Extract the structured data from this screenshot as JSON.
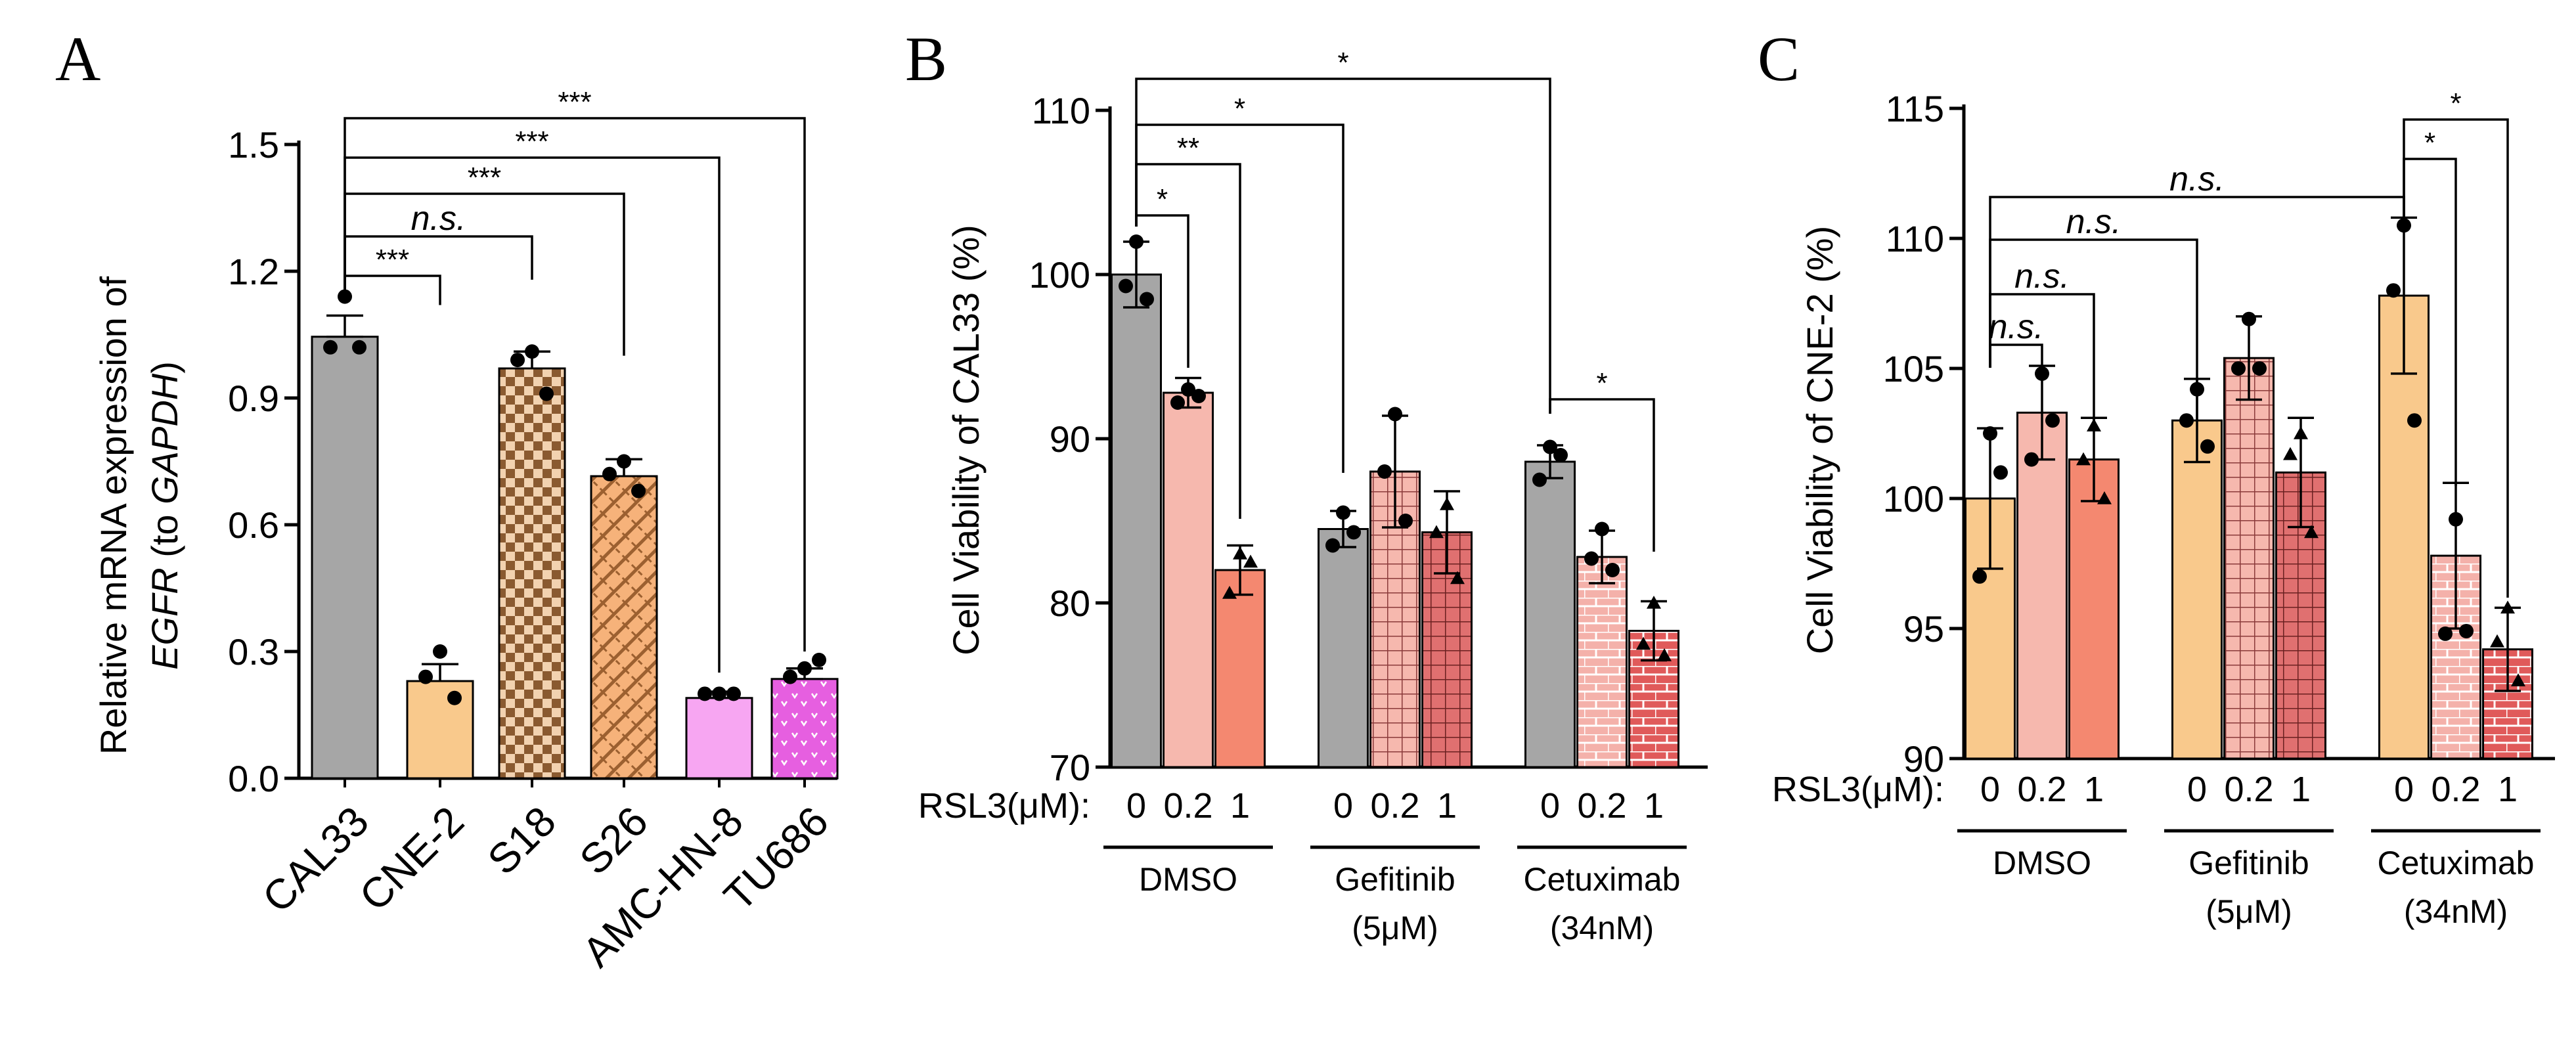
{
  "chart_data": [
    {
      "panel": "A",
      "type": "bar",
      "ylabel_line1": "Relative mRNA expression of",
      "ylabel_gene": "EGFR",
      "ylabel_to": " (to ",
      "ylabel_ref": "GAPDH",
      "ylabel_close": ")",
      "ylim": [
        0,
        1.5
      ],
      "yticks": [
        "0.0",
        "0.3",
        "0.6",
        "0.9",
        "1.2",
        "1.5"
      ],
      "categories": [
        "CAL33",
        "CNE-2",
        "S18",
        "S26",
        "AMC-HN-8",
        "TU686"
      ],
      "values": [
        1.045,
        0.23,
        0.97,
        0.715,
        0.19,
        0.235
      ],
      "errors": [
        0.05,
        0.04,
        0.04,
        0.04,
        0.015,
        0.025
      ],
      "points": [
        [
          1.14,
          1.02,
          1.02
        ],
        [
          0.3,
          0.24,
          0.19
        ],
        [
          1.01,
          0.99,
          0.91
        ],
        [
          0.75,
          0.72,
          0.68
        ],
        [
          0.2,
          0.2,
          0.2
        ],
        [
          0.26,
          0.24,
          0.28
        ]
      ],
      "comparisons": [
        {
          "from": 0,
          "to": 1,
          "label": "***"
        },
        {
          "from": 0,
          "to": 2,
          "label": "n.s."
        },
        {
          "from": 0,
          "to": 3,
          "label": "***"
        },
        {
          "from": 0,
          "to": 4,
          "label": "***"
        },
        {
          "from": 0,
          "to": 5,
          "label": "***"
        }
      ]
    },
    {
      "panel": "B",
      "type": "bar",
      "ylabel": "Cell Viability  of  CAL33  (%)",
      "ylim": [
        70,
        110
      ],
      "yticks": [
        "70",
        "80",
        "90",
        "100",
        "110"
      ],
      "x_prefix": "RSL3(μM):",
      "doses": [
        "0",
        "0.2",
        "1"
      ],
      "groups": [
        {
          "name": "DMSO",
          "sub": "",
          "values": [
            100,
            92.8,
            82.0
          ],
          "errors": [
            2.0,
            0.9,
            1.5
          ],
          "points": [
            [
              102,
              99.3,
              98.5
            ],
            [
              93.0,
              92.2,
              92.6
            ],
            [
              83.0,
              80.6,
              82.5
            ]
          ]
        },
        {
          "name": "Gefitinib",
          "sub": "(5μM)",
          "values": [
            84.5,
            88.0,
            84.3
          ],
          "errors": [
            1.1,
            3.4,
            2.5
          ],
          "points": [
            [
              85.5,
              83.5,
              84.3
            ],
            [
              91.5,
              88.0,
              85.0
            ],
            [
              86.0,
              84.3,
              81.5
            ]
          ]
        },
        {
          "name": "Cetuximab",
          "sub": "(34nM)",
          "values": [
            88.6,
            82.8,
            78.3
          ],
          "errors": [
            1.0,
            1.6,
            1.8
          ],
          "points": [
            [
              89.5,
              87.5,
              89.0
            ],
            [
              84.5,
              82.7,
              82.0
            ],
            [
              80.0,
              77.5,
              76.8
            ]
          ]
        }
      ],
      "comparisons": [
        {
          "label": "*"
        },
        {
          "label": "**"
        },
        {
          "label": "*"
        },
        {
          "label": "*"
        },
        {
          "label": "*"
        }
      ]
    },
    {
      "panel": "C",
      "type": "bar",
      "ylabel": "Cell Viability of CNE-2 (%)",
      "ylim": [
        90,
        115
      ],
      "yticks": [
        "90",
        "95",
        "100",
        "105",
        "110",
        "115"
      ],
      "x_prefix": "RSL3(μM):",
      "doses": [
        "0",
        "0.2",
        "1"
      ],
      "groups": [
        {
          "name": "DMSO",
          "sub": "",
          "values": [
            100.0,
            103.3,
            101.5
          ],
          "errors": [
            2.7,
            1.8,
            1.6
          ],
          "points": [
            [
              102.5,
              97.0,
              101.0
            ],
            [
              104.8,
              101.5,
              103.0
            ],
            [
              102.8,
              101.5,
              100.0
            ]
          ]
        },
        {
          "name": "Gefitinib",
          "sub": "(5μM)",
          "values": [
            103.0,
            105.4,
            101.0
          ],
          "errors": [
            1.6,
            1.6,
            2.1
          ],
          "points": [
            [
              104.2,
              103.0,
              102.0
            ],
            [
              106.9,
              105.0,
              105.0
            ],
            [
              102.5,
              101.7,
              98.7
            ]
          ]
        },
        {
          "name": "Cetuximab",
          "sub": "(34nM)",
          "values": [
            107.8,
            97.8,
            94.2
          ],
          "errors": [
            3.0,
            2.8,
            1.6
          ],
          "points": [
            [
              110.5,
              108.0,
              103.0
            ],
            [
              99.2,
              94.8,
              94.9
            ],
            [
              95.8,
              94.5,
              93.0
            ]
          ]
        }
      ],
      "comparisons": [
        {
          "label": "n.s."
        },
        {
          "label": "n.s."
        },
        {
          "label": "n.s."
        },
        {
          "label": "n.s."
        },
        {
          "label": "*"
        },
        {
          "label": "*"
        }
      ]
    }
  ],
  "panel_letters": [
    "A",
    "B",
    "C"
  ],
  "colors": {
    "gray": "#A6A6A6",
    "orange": "#F9C98C",
    "brown_check": "#B07A4A",
    "s26": "#F3B277",
    "pink": "#F7A6F2",
    "magenta": "#E65FE0",
    "light_salmon": "#F6B8AE",
    "salmon": "#F48870",
    "red": "#E05A5A",
    "dark_red": "#C64B4B"
  }
}
